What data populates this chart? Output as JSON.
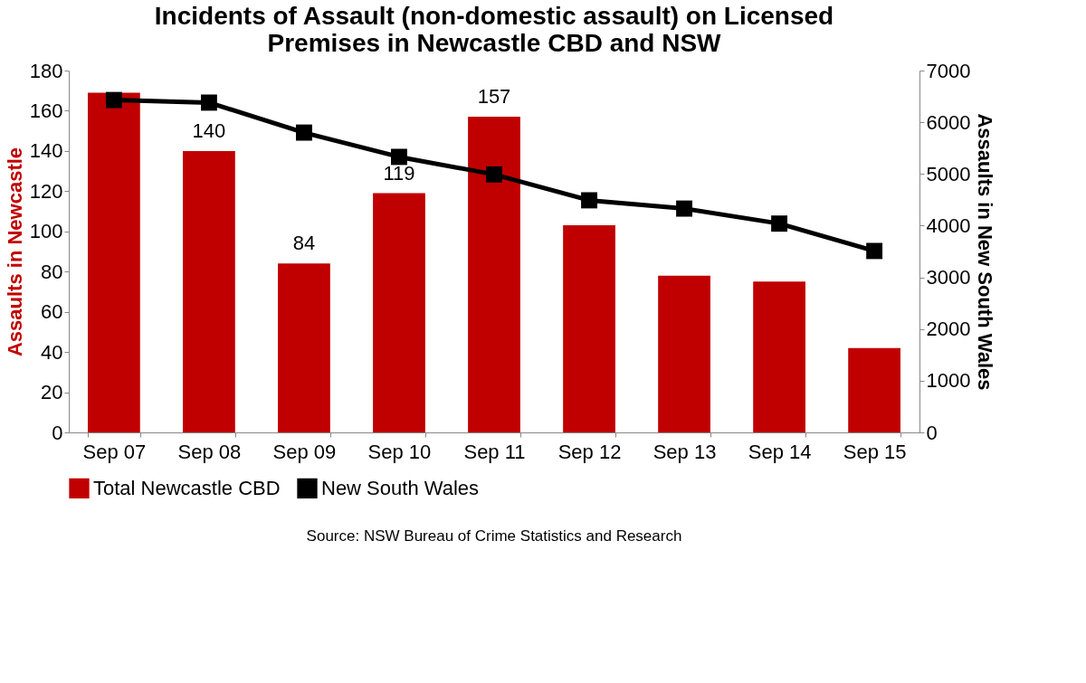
{
  "chart_data": {
    "type": "bar",
    "title": "Incidents of Assault (non-domestic assault) on Licensed\nPremises in Newcastle CBD and NSW",
    "ylabel": "Assaults in Newcastle",
    "y2label": "Assaults in New South Wales",
    "categories": [
      "Sep 07",
      "Sep 08",
      "Sep 09",
      "Sep 10",
      "Sep 11",
      "Sep 12",
      "Sep 13",
      "Sep 14",
      "Sep 15"
    ],
    "series": [
      {
        "name": "Total Newcastle CBD",
        "color": "#c00000",
        "values": [
          169,
          140,
          84,
          119,
          157,
          103,
          78,
          75,
          42
        ],
        "value_labels": [
          null,
          "140",
          "84",
          "119",
          "157",
          null,
          null,
          null,
          null
        ]
      },
      {
        "name": "New South Wales",
        "type": "line",
        "axis": "y2",
        "color": "#000000",
        "marker": "square",
        "values": [
          6430,
          6380,
          5800,
          5330,
          4990,
          4490,
          4330,
          4040,
          3510
        ]
      }
    ],
    "ylim": [
      0,
      180
    ],
    "yticks": [
      0,
      20,
      40,
      60,
      80,
      100,
      120,
      140,
      160,
      180
    ],
    "y2lim": [
      0,
      7000
    ],
    "y2ticks": [
      0,
      {
        "value": 1000,
        "label": "1000"
      },
      {
        "value": 2000,
        "label": "2000"
      },
      {
        "value": 3000,
        "label": "3000"
      },
      {
        "value": 4000,
        "label": "4000"
      },
      {
        "value": 5000,
        "label": "5000"
      },
      {
        "value": 6000,
        "label": "6000"
      },
      {
        "value": 7000,
        "label": "7000"
      }
    ],
    "grid": false,
    "legend": "bottom",
    "annotations": [
      "Source: NSW Bureau of Crime Statistics and Research"
    ]
  }
}
